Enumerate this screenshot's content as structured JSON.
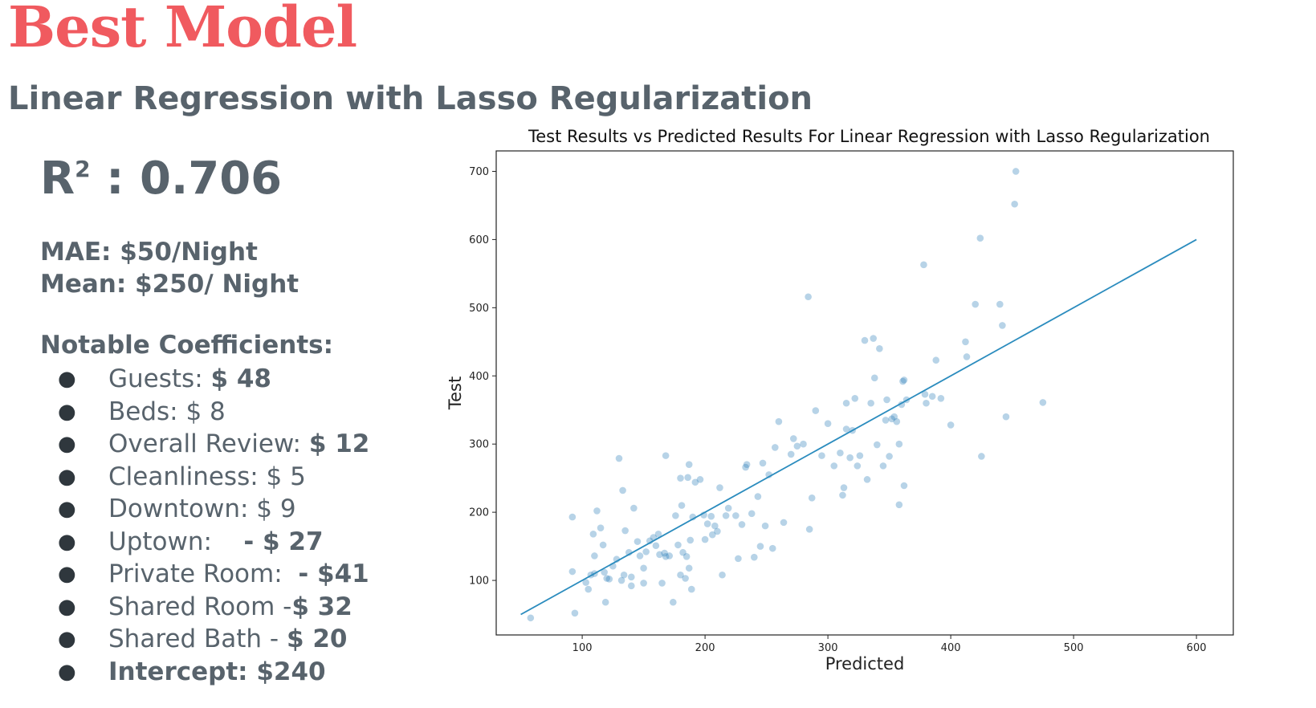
{
  "header": {
    "title": "Best Model",
    "subtitle_part1": "Linear Regression",
    "subtitle_part2": " with ",
    "subtitle_part3": "Lasso Regularization"
  },
  "metrics": {
    "r2_letter": "R",
    "r2_sup": "2",
    "r2_value": " : 0.706",
    "mae": "MAE: $50/Night",
    "mean": "Mean: $250/ Night"
  },
  "coefficients": {
    "heading": "Notable Coefficients:",
    "items": [
      {
        "label": "Guests: ",
        "value": "$ 48",
        "value_bold": true,
        "label_bold": false
      },
      {
        "label": "Beds: ",
        "value": "$ 8",
        "value_bold": false,
        "label_bold": false
      },
      {
        "label": "Overall Review: ",
        "value": "$ 12",
        "value_bold": true,
        "label_bold": false
      },
      {
        "label": "Cleanliness: ",
        "value": "$ 5",
        "value_bold": false,
        "label_bold": false
      },
      {
        "label": "Downtown: ",
        "value": "$ 9",
        "value_bold": false,
        "label_bold": false
      },
      {
        "label": "Uptown:    ",
        "value": "- $ 27",
        "value_bold": true,
        "label_bold": false
      },
      {
        "label": "Private Room:  ",
        "value": "- $41",
        "value_bold": true,
        "label_bold": false
      },
      {
        "label": "Shared Room -",
        "value": "$ 32",
        "value_bold": true,
        "label_bold": false
      },
      {
        "label": "Shared Bath - ",
        "value": "$ 20",
        "value_bold": true,
        "label_bold": false
      },
      {
        "label": "Intercept: ",
        "value": "$240",
        "value_bold": true,
        "label_bold": true
      }
    ]
  },
  "chart_data": {
    "type": "scatter",
    "title": "Test Results vs Predicted Results For Linear Regression with Lasso Regularization",
    "xlabel": "Predicted",
    "ylabel": "Test",
    "xlim": [
      30,
      630
    ],
    "ylim": [
      20,
      730
    ],
    "xticks": [
      100,
      200,
      300,
      400,
      500,
      600
    ],
    "yticks": [
      100,
      200,
      300,
      400,
      500,
      600,
      700
    ],
    "grid": false,
    "point_color": "#1f77b4",
    "line_color": "#2b8cbe",
    "reference_line": {
      "x": [
        50,
        600
      ],
      "y": [
        50,
        600
      ]
    },
    "points": [
      [
        58,
        45
      ],
      [
        94,
        52
      ],
      [
        92,
        113
      ],
      [
        92,
        193
      ],
      [
        105,
        87
      ],
      [
        103,
        97
      ],
      [
        107,
        108
      ],
      [
        110,
        110
      ],
      [
        109,
        168
      ],
      [
        110,
        136
      ],
      [
        112,
        202
      ],
      [
        115,
        177
      ],
      [
        117,
        152
      ],
      [
        118,
        112
      ],
      [
        120,
        103
      ],
      [
        119,
        68
      ],
      [
        122,
        102
      ],
      [
        125,
        121
      ],
      [
        128,
        131
      ],
      [
        130,
        279
      ],
      [
        132,
        100
      ],
      [
        133,
        232
      ],
      [
        134,
        108
      ],
      [
        135,
        173
      ],
      [
        138,
        141
      ],
      [
        140,
        105
      ],
      [
        140,
        92
      ],
      [
        142,
        206
      ],
      [
        145,
        157
      ],
      [
        147,
        136
      ],
      [
        150,
        96
      ],
      [
        150,
        118
      ],
      [
        152,
        142
      ],
      [
        155,
        158
      ],
      [
        158,
        163
      ],
      [
        160,
        151
      ],
      [
        162,
        168
      ],
      [
        163,
        138
      ],
      [
        165,
        96
      ],
      [
        167,
        140
      ],
      [
        168,
        135
      ],
      [
        168,
        283
      ],
      [
        171,
        136
      ],
      [
        174,
        68
      ],
      [
        176,
        195
      ],
      [
        178,
        152
      ],
      [
        180,
        108
      ],
      [
        180,
        250
      ],
      [
        181,
        210
      ],
      [
        182,
        141
      ],
      [
        184,
        103
      ],
      [
        185,
        135
      ],
      [
        186,
        251
      ],
      [
        187,
        270
      ],
      [
        187,
        118
      ],
      [
        189,
        87
      ],
      [
        190,
        193
      ],
      [
        188,
        159
      ],
      [
        192,
        244
      ],
      [
        196,
        248
      ],
      [
        199,
        196
      ],
      [
        200,
        160
      ],
      [
        202,
        183
      ],
      [
        205,
        194
      ],
      [
        206,
        167
      ],
      [
        208,
        180
      ],
      [
        210,
        172
      ],
      [
        212,
        236
      ],
      [
        214,
        108
      ],
      [
        217,
        195
      ],
      [
        219,
        206
      ],
      [
        225,
        195
      ],
      [
        227,
        132
      ],
      [
        230,
        182
      ],
      [
        233,
        266
      ],
      [
        234,
        270
      ],
      [
        238,
        198
      ],
      [
        240,
        134
      ],
      [
        243,
        223
      ],
      [
        245,
        150
      ],
      [
        247,
        272
      ],
      [
        249,
        180
      ],
      [
        252,
        255
      ],
      [
        255,
        147
      ],
      [
        257,
        295
      ],
      [
        260,
        333
      ],
      [
        264,
        185
      ],
      [
        270,
        285
      ],
      [
        272,
        308
      ],
      [
        275,
        297
      ],
      [
        280,
        300
      ],
      [
        284,
        516
      ],
      [
        285,
        175
      ],
      [
        287,
        221
      ],
      [
        290,
        349
      ],
      [
        295,
        283
      ],
      [
        300,
        330
      ],
      [
        305,
        268
      ],
      [
        310,
        287
      ],
      [
        312,
        225
      ],
      [
        313,
        236
      ],
      [
        315,
        322
      ],
      [
        315,
        360
      ],
      [
        318,
        280
      ],
      [
        320,
        320
      ],
      [
        322,
        367
      ],
      [
        324,
        268
      ],
      [
        326,
        283
      ],
      [
        330,
        452
      ],
      [
        332,
        248
      ],
      [
        335,
        360
      ],
      [
        337,
        455
      ],
      [
        338,
        397
      ],
      [
        340,
        299
      ],
      [
        342,
        440
      ],
      [
        345,
        268
      ],
      [
        347,
        335
      ],
      [
        348,
        365
      ],
      [
        350,
        282
      ],
      [
        352,
        337
      ],
      [
        354,
        340
      ],
      [
        356,
        333
      ],
      [
        358,
        211
      ],
      [
        358,
        300
      ],
      [
        360,
        358
      ],
      [
        361,
        392
      ],
      [
        362,
        394
      ],
      [
        362,
        239
      ],
      [
        364,
        365
      ],
      [
        378,
        563
      ],
      [
        379,
        373
      ],
      [
        380,
        360
      ],
      [
        385,
        370
      ],
      [
        388,
        423
      ],
      [
        392,
        367
      ],
      [
        400,
        328
      ],
      [
        412,
        450
      ],
      [
        413,
        428
      ],
      [
        420,
        505
      ],
      [
        424,
        602
      ],
      [
        425,
        282
      ],
      [
        440,
        505
      ],
      [
        442,
        474
      ],
      [
        445,
        340
      ],
      [
        452,
        652
      ],
      [
        453,
        700
      ],
      [
        475,
        361
      ]
    ]
  }
}
